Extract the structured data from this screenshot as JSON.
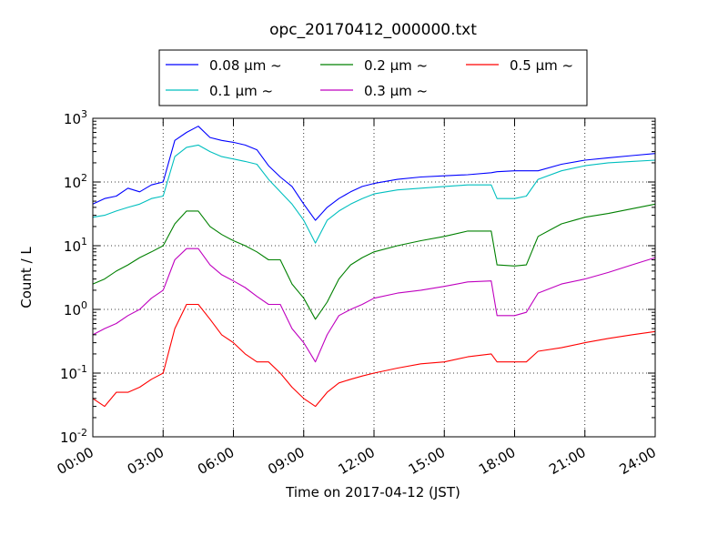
{
  "chart_data": {
    "type": "line",
    "title": "opc_20170412_000000.txt",
    "xlabel": "Time on 2017-04-12 (JST)",
    "ylabel": "Count / L",
    "yscale": "log",
    "xlim": [
      "00:00",
      "24:00"
    ],
    "ylim": [
      0.01,
      1000
    ],
    "grid": true,
    "legend_placement": "top-center",
    "legend_columns": 3,
    "x_ticks": [
      "00:00",
      "03:00",
      "06:00",
      "09:00",
      "12:00",
      "15:00",
      "18:00",
      "21:00",
      "24:00"
    ],
    "y_ticks": [
      {
        "value": 0.01,
        "base": "10",
        "exp": "-2"
      },
      {
        "value": 0.1,
        "base": "10",
        "exp": "-1"
      },
      {
        "value": 1,
        "base": "10",
        "exp": "0"
      },
      {
        "value": 10,
        "base": "10",
        "exp": "1"
      },
      {
        "value": 100,
        "base": "10",
        "exp": "2"
      },
      {
        "value": 1000,
        "base": "10",
        "exp": "3"
      }
    ],
    "series": [
      {
        "name": "0.08 μm ~",
        "color": "#0000ff",
        "x": [
          "00:00",
          "00:30",
          "01:00",
          "01:30",
          "02:00",
          "02:30",
          "03:00",
          "03:30",
          "04:00",
          "04:30",
          "05:00",
          "05:30",
          "06:00",
          "06:30",
          "07:00",
          "07:30",
          "08:00",
          "08:30",
          "09:00",
          "09:30",
          "10:00",
          "10:30",
          "11:00",
          "11:30",
          "12:00",
          "13:00",
          "14:00",
          "15:00",
          "16:00",
          "17:00",
          "17:15",
          "18:00",
          "18:30",
          "19:00",
          "20:00",
          "21:00",
          "22:00",
          "23:00",
          "24:00"
        ],
        "y": [
          45,
          55,
          60,
          80,
          70,
          90,
          100,
          450,
          600,
          750,
          500,
          450,
          420,
          380,
          320,
          180,
          120,
          85,
          45,
          25,
          40,
          55,
          70,
          85,
          95,
          110,
          120,
          125,
          130,
          140,
          145,
          150,
          150,
          150,
          190,
          220,
          240,
          260,
          280
        ]
      },
      {
        "name": "0.1 μm ~",
        "color": "#00bfbf",
        "x": [
          "00:00",
          "00:30",
          "01:00",
          "01:30",
          "02:00",
          "02:30",
          "03:00",
          "03:30",
          "04:00",
          "04:30",
          "05:00",
          "05:30",
          "06:00",
          "06:30",
          "07:00",
          "07:30",
          "08:00",
          "08:30",
          "09:00",
          "09:30",
          "10:00",
          "10:30",
          "11:00",
          "11:30",
          "12:00",
          "13:00",
          "14:00",
          "15:00",
          "16:00",
          "17:00",
          "17:15",
          "18:00",
          "18:30",
          "19:00",
          "20:00",
          "21:00",
          "22:00",
          "23:00",
          "24:00"
        ],
        "y": [
          28,
          30,
          35,
          40,
          45,
          55,
          60,
          250,
          350,
          380,
          300,
          250,
          230,
          210,
          190,
          110,
          70,
          45,
          25,
          11,
          25,
          35,
          45,
          55,
          65,
          75,
          80,
          85,
          90,
          90,
          55,
          55,
          60,
          110,
          150,
          180,
          200,
          210,
          220
        ]
      },
      {
        "name": "0.2 μm ~",
        "color": "#008000",
        "x": [
          "00:00",
          "00:30",
          "01:00",
          "01:30",
          "02:00",
          "02:30",
          "03:00",
          "03:30",
          "04:00",
          "04:30",
          "05:00",
          "05:30",
          "06:00",
          "06:30",
          "07:00",
          "07:30",
          "08:00",
          "08:30",
          "09:00",
          "09:30",
          "10:00",
          "10:30",
          "11:00",
          "11:30",
          "12:00",
          "13:00",
          "14:00",
          "15:00",
          "16:00",
          "17:00",
          "17:15",
          "18:00",
          "18:30",
          "19:00",
          "20:00",
          "21:00",
          "22:00",
          "23:00",
          "24:00"
        ],
        "y": [
          2.5,
          3,
          4,
          5,
          6.5,
          8,
          10,
          22,
          35,
          35,
          20,
          15,
          12,
          10,
          8,
          6,
          6,
          2.5,
          1.5,
          0.7,
          1.3,
          3,
          5,
          6.5,
          8,
          10,
          12,
          14,
          17,
          17,
          5,
          4.8,
          5,
          14,
          22,
          28,
          32,
          38,
          45
        ]
      },
      {
        "name": "0.3 μm ~",
        "color": "#bf00bf",
        "x": [
          "00:00",
          "00:30",
          "01:00",
          "01:30",
          "02:00",
          "02:30",
          "03:00",
          "03:30",
          "04:00",
          "04:30",
          "05:00",
          "05:30",
          "06:00",
          "06:30",
          "07:00",
          "07:30",
          "08:00",
          "08:30",
          "09:00",
          "09:30",
          "10:00",
          "10:30",
          "11:00",
          "11:30",
          "12:00",
          "13:00",
          "14:00",
          "15:00",
          "16:00",
          "17:00",
          "17:15",
          "18:00",
          "18:30",
          "19:00",
          "20:00",
          "21:00",
          "22:00",
          "23:00",
          "24:00"
        ],
        "y": [
          0.4,
          0.5,
          0.6,
          0.8,
          1,
          1.5,
          2,
          6,
          9,
          9,
          5,
          3.5,
          2.8,
          2.2,
          1.6,
          1.2,
          1.2,
          0.5,
          0.3,
          0.15,
          0.4,
          0.8,
          1,
          1.2,
          1.5,
          1.8,
          2,
          2.3,
          2.7,
          2.8,
          0.8,
          0.8,
          0.9,
          1.8,
          2.5,
          3,
          3.8,
          5,
          6.5
        ]
      },
      {
        "name": "0.5 μm ~",
        "color": "#ff0000",
        "x": [
          "00:00",
          "00:30",
          "01:00",
          "01:30",
          "02:00",
          "02:30",
          "03:00",
          "03:30",
          "04:00",
          "04:30",
          "05:00",
          "05:30",
          "06:00",
          "06:30",
          "07:00",
          "07:30",
          "08:00",
          "08:30",
          "09:00",
          "09:30",
          "10:00",
          "10:30",
          "11:00",
          "11:30",
          "12:00",
          "13:00",
          "14:00",
          "15:00",
          "16:00",
          "17:00",
          "17:15",
          "18:00",
          "18:30",
          "19:00",
          "20:00",
          "21:00",
          "22:00",
          "23:00",
          "24:00"
        ],
        "y": [
          0.04,
          0.03,
          0.05,
          0.05,
          0.06,
          0.08,
          0.1,
          0.5,
          1.2,
          1.2,
          0.7,
          0.4,
          0.3,
          0.2,
          0.15,
          0.15,
          0.1,
          0.06,
          0.04,
          0.03,
          0.05,
          0.07,
          0.08,
          0.09,
          0.1,
          0.12,
          0.14,
          0.15,
          0.18,
          0.2,
          0.15,
          0.15,
          0.15,
          0.22,
          0.25,
          0.3,
          0.35,
          0.4,
          0.45
        ]
      }
    ]
  }
}
